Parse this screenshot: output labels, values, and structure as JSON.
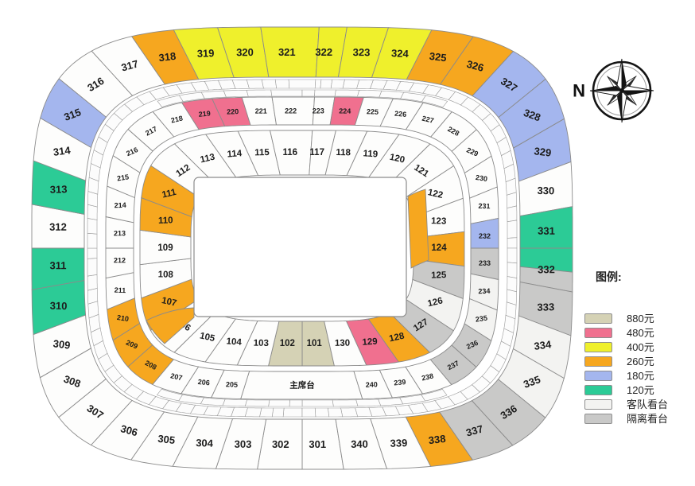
{
  "legend": {
    "title": "图例:",
    "items": [
      {
        "label": "880元",
        "color": "t880"
      },
      {
        "label": "480元",
        "color": "p480"
      },
      {
        "label": "400元",
        "color": "y400"
      },
      {
        "label": "260元",
        "color": "o260"
      },
      {
        "label": "180元",
        "color": "b180"
      },
      {
        "label": "120元",
        "color": "g120"
      },
      {
        "label": "客队看台",
        "color": "away"
      },
      {
        "label": "隔离看台",
        "color": "iso"
      }
    ]
  },
  "compass": {
    "north_label": "N"
  },
  "map": {
    "vip_label": "主席台",
    "colors": {
      "std": "#FDFDFC",
      "t880": "#D5D2B5",
      "p480": "#F0708F",
      "y400": "#EFF02C",
      "o260": "#F6A71F",
      "b180": "#A4B6EE",
      "g120": "#2CCB96",
      "away": "#F3F3F1",
      "iso": "#C9C9C8"
    },
    "outer_ring": [
      {
        "id": "301",
        "color": "std"
      },
      {
        "id": "302",
        "color": "std"
      },
      {
        "id": "303",
        "color": "std"
      },
      {
        "id": "304",
        "color": "std"
      },
      {
        "id": "305",
        "color": "std"
      },
      {
        "id": "306",
        "color": "std"
      },
      {
        "id": "307",
        "color": "std"
      },
      {
        "id": "308",
        "color": "std"
      },
      {
        "id": "309",
        "color": "std"
      },
      {
        "id": "310",
        "color": "g120"
      },
      {
        "id": "311",
        "color": "g120"
      },
      {
        "id": "312",
        "color": "std"
      },
      {
        "id": "313",
        "color": "g120"
      },
      {
        "id": "314",
        "color": "std"
      },
      {
        "id": "315",
        "color": "b180"
      },
      {
        "id": "316",
        "color": "std"
      },
      {
        "id": "317",
        "color": "std"
      },
      {
        "id": "318",
        "color": "o260"
      },
      {
        "id": "319",
        "color": "y400"
      },
      {
        "id": "320",
        "color": "y400"
      },
      {
        "id": "321",
        "color": "y400"
      },
      {
        "id": "322",
        "color": "y400"
      },
      {
        "id": "323",
        "color": "y400"
      },
      {
        "id": "324",
        "color": "y400"
      },
      {
        "id": "325",
        "color": "o260"
      },
      {
        "id": "326",
        "color": "o260"
      },
      {
        "id": "327",
        "color": "b180"
      },
      {
        "id": "328",
        "color": "b180"
      },
      {
        "id": "329",
        "color": "b180"
      },
      {
        "id": "330",
        "color": "std"
      },
      {
        "id": "331",
        "color": "g120"
      },
      {
        "id": "332",
        "color": [
          "g120",
          "iso"
        ]
      },
      {
        "id": "333",
        "color": "iso"
      },
      {
        "id": "334",
        "color": "away"
      },
      {
        "id": "335",
        "color": "away"
      },
      {
        "id": "336",
        "color": "iso"
      },
      {
        "id": "337",
        "color": "iso"
      },
      {
        "id": "338",
        "color": "o260"
      },
      {
        "id": "339",
        "color": "std"
      },
      {
        "id": "340",
        "color": "std"
      }
    ],
    "middle_ring": [
      {
        "id": "205",
        "color": "std"
      },
      {
        "id": "206",
        "color": "std"
      },
      {
        "id": "207",
        "color": "std"
      },
      {
        "id": "208",
        "color": "o260"
      },
      {
        "id": "209",
        "color": "o260"
      },
      {
        "id": "210",
        "color": "o260"
      },
      {
        "id": "211",
        "color": "std"
      },
      {
        "id": "212",
        "color": "std"
      },
      {
        "id": "213",
        "color": "std"
      },
      {
        "id": "214",
        "color": "std"
      },
      {
        "id": "215",
        "color": "std"
      },
      {
        "id": "216",
        "color": "std"
      },
      {
        "id": "217",
        "color": "std"
      },
      {
        "id": "218",
        "color": "std"
      },
      {
        "id": "219",
        "color": "p480"
      },
      {
        "id": "220",
        "color": "p480"
      },
      {
        "id": "221",
        "color": "std"
      },
      {
        "id": "222",
        "color": "std"
      },
      {
        "id": "223",
        "color": "std"
      },
      {
        "id": "224",
        "color": "p480"
      },
      {
        "id": "225",
        "color": "std"
      },
      {
        "id": "226",
        "color": "std"
      },
      {
        "id": "227",
        "color": "std"
      },
      {
        "id": "228",
        "color": "std"
      },
      {
        "id": "229",
        "color": "std"
      },
      {
        "id": "230",
        "color": "std"
      },
      {
        "id": "231",
        "color": "std"
      },
      {
        "id": "232",
        "color": "b180"
      },
      {
        "id": "233",
        "color": "iso"
      },
      {
        "id": "234",
        "color": "away"
      },
      {
        "id": "235",
        "color": "away"
      },
      {
        "id": "236",
        "color": "iso"
      },
      {
        "id": "237",
        "color": "iso"
      },
      {
        "id": "238",
        "color": "std"
      },
      {
        "id": "239",
        "color": "std"
      },
      {
        "id": "240",
        "color": "std"
      }
    ],
    "inner_ring": [
      {
        "id": "101",
        "color": "t880"
      },
      {
        "id": "102",
        "color": "t880"
      },
      {
        "id": "103",
        "color": "std"
      },
      {
        "id": "104",
        "color": "std"
      },
      {
        "id": "105",
        "color": "std"
      },
      {
        "id": "106",
        "color": "std"
      },
      {
        "id": "107",
        "color": "o260"
      },
      {
        "id": "108",
        "color": "std"
      },
      {
        "id": "109",
        "color": "std"
      },
      {
        "id": "110",
        "color": "o260"
      },
      {
        "id": "111",
        "color": "o260"
      },
      {
        "id": "112",
        "color": "std"
      },
      {
        "id": "113",
        "color": "std"
      },
      {
        "id": "114",
        "color": "std"
      },
      {
        "id": "115",
        "color": "std"
      },
      {
        "id": "116",
        "color": "std"
      },
      {
        "id": "117",
        "color": "std"
      },
      {
        "id": "118",
        "color": "std"
      },
      {
        "id": "119",
        "color": "std"
      },
      {
        "id": "120",
        "color": "std"
      },
      {
        "id": "121",
        "color": "std"
      },
      {
        "id": "122",
        "color": "std"
      },
      {
        "id": "123",
        "color": "std"
      },
      {
        "id": "124",
        "color": "o260"
      },
      {
        "id": "125",
        "color": "iso"
      },
      {
        "id": "126",
        "color": "away"
      },
      {
        "id": "127",
        "color": "iso"
      },
      {
        "id": "128",
        "color": "o260"
      },
      {
        "id": "129",
        "color": "p480"
      },
      {
        "id": "130",
        "color": "std"
      }
    ]
  }
}
